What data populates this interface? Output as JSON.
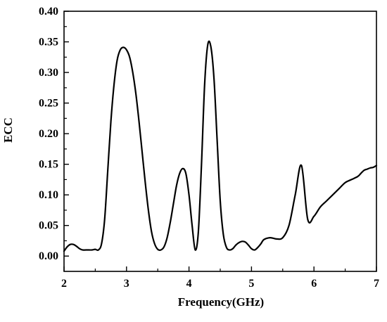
{
  "chart_data": {
    "type": "line",
    "title": "",
    "xlabel": "Frequency(GHz)",
    "ylabel": "ECC",
    "xlim": [
      2,
      7
    ],
    "ylim": [
      -0.025,
      0.4
    ],
    "x_ticks": [
      2,
      3,
      4,
      5,
      6,
      7
    ],
    "x_tick_labels": [
      "2",
      "3",
      "4",
      "5",
      "6",
      "7"
    ],
    "y_ticks": [
      0.0,
      0.05,
      0.1,
      0.15,
      0.2,
      0.25,
      0.3,
      0.35,
      0.4
    ],
    "y_tick_labels": [
      "0.00",
      "0.05",
      "0.10",
      "0.15",
      "0.20",
      "0.25",
      "0.30",
      "0.35",
      "0.40"
    ],
    "grid": false,
    "legend": "none",
    "line_color": "#000000",
    "series": [
      {
        "x": [
          2.0,
          2.05,
          2.1,
          2.15,
          2.2,
          2.25,
          2.3,
          2.35,
          2.4,
          2.45,
          2.5,
          2.55,
          2.6,
          2.65,
          2.7,
          2.75,
          2.8,
          2.85,
          2.9,
          2.95,
          3.0,
          3.05,
          3.1,
          3.15,
          3.2,
          3.25,
          3.3,
          3.35,
          3.4,
          3.45,
          3.5,
          3.55,
          3.6,
          3.65,
          3.7,
          3.75,
          3.8,
          3.85,
          3.9,
          3.95,
          4.0,
          4.05,
          4.1,
          4.15,
          4.2,
          4.25,
          4.3,
          4.35,
          4.4,
          4.45,
          4.5,
          4.55,
          4.6,
          4.65,
          4.7,
          4.75,
          4.8,
          4.85,
          4.9,
          4.95,
          5.0,
          5.05,
          5.1,
          5.15,
          5.2,
          5.3,
          5.4,
          5.5,
          5.6,
          5.7,
          5.8,
          5.9,
          6.0,
          6.1,
          6.2,
          6.3,
          6.4,
          6.5,
          6.6,
          6.7,
          6.75,
          6.8,
          6.85,
          6.9,
          6.95,
          7.0
        ],
        "values": [
          0.008,
          0.015,
          0.019,
          0.019,
          0.016,
          0.012,
          0.01,
          0.01,
          0.01,
          0.01,
          0.011,
          0.01,
          0.02,
          0.06,
          0.14,
          0.22,
          0.28,
          0.32,
          0.337,
          0.341,
          0.337,
          0.325,
          0.3,
          0.265,
          0.22,
          0.17,
          0.12,
          0.075,
          0.04,
          0.02,
          0.011,
          0.01,
          0.015,
          0.03,
          0.055,
          0.085,
          0.115,
          0.135,
          0.143,
          0.135,
          0.1,
          0.05,
          0.01,
          0.04,
          0.15,
          0.28,
          0.345,
          0.342,
          0.29,
          0.19,
          0.09,
          0.035,
          0.014,
          0.01,
          0.012,
          0.018,
          0.022,
          0.024,
          0.023,
          0.018,
          0.012,
          0.01,
          0.014,
          0.02,
          0.027,
          0.03,
          0.028,
          0.03,
          0.05,
          0.1,
          0.148,
          0.06,
          0.065,
          0.08,
          0.09,
          0.1,
          0.11,
          0.12,
          0.125,
          0.13,
          0.135,
          0.14,
          0.142,
          0.144,
          0.145,
          0.148
        ]
      }
    ]
  }
}
